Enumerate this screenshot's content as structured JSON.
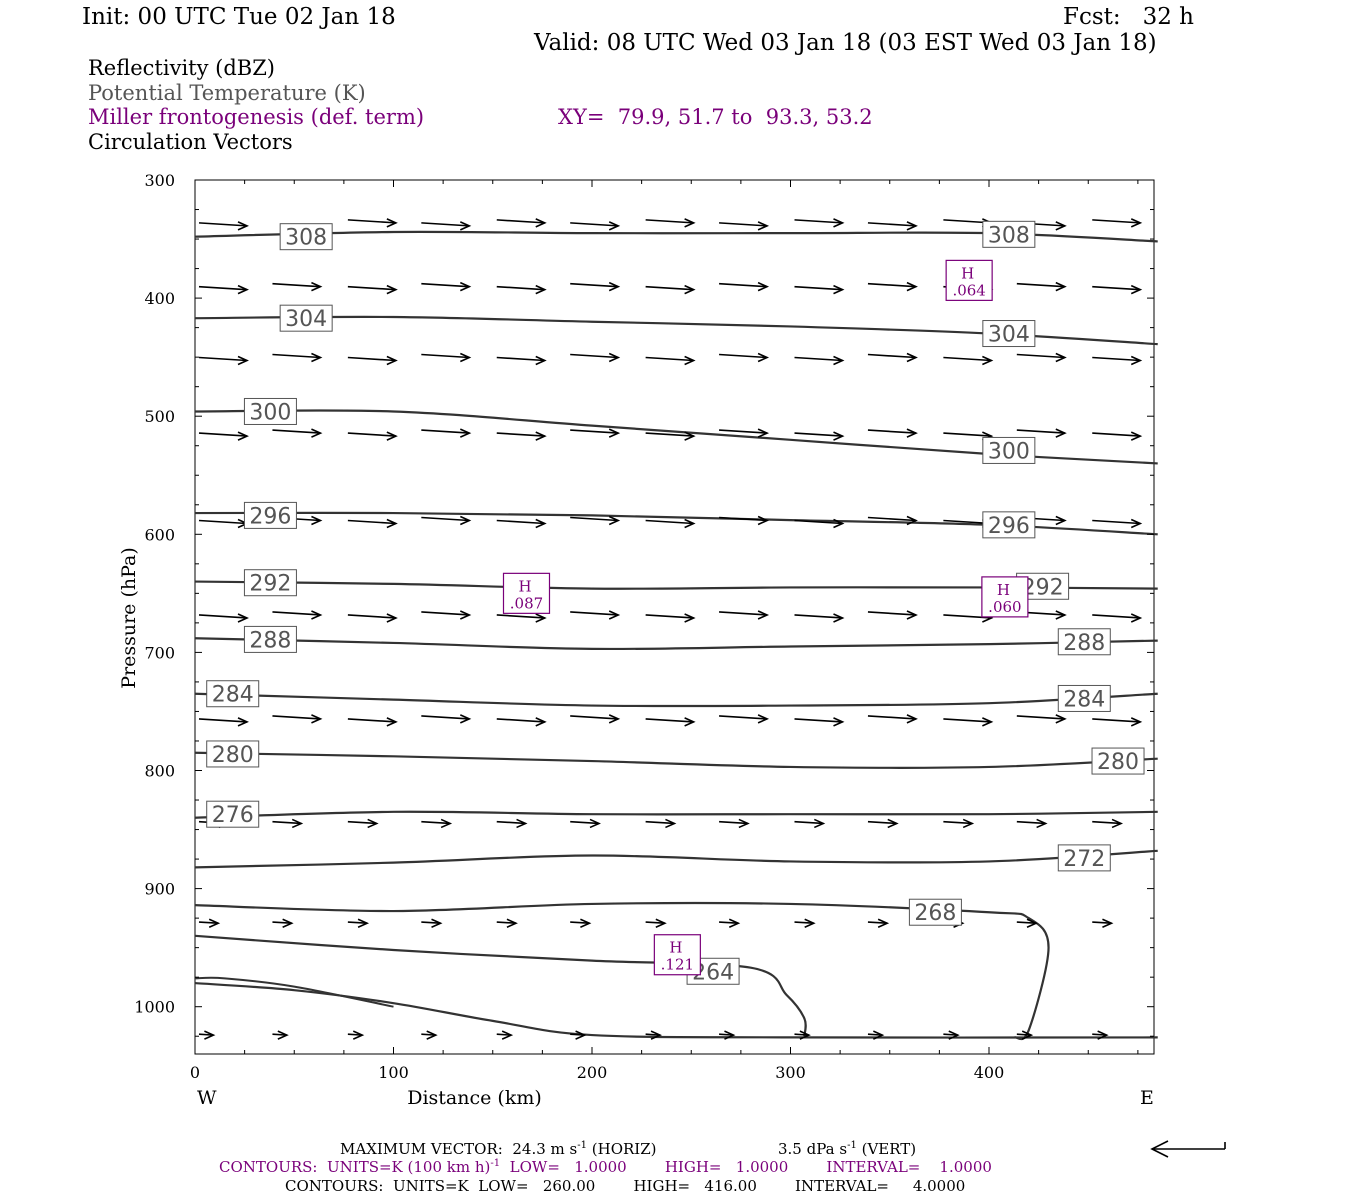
{
  "header": {
    "init": "Init: 00 UTC Tue 02 Jan 18",
    "fcst": "Fcst:   32 h",
    "valid": "Valid: 08 UTC Wed 03 Jan 18 (03 EST Wed 03 Jan 18)"
  },
  "fields": {
    "reflectivity": "Reflectivity (dBZ)",
    "theta": "Potential Temperature (K)",
    "frontogenesis": "Miller frontogenesis (def. term)",
    "xy": "XY=  79.9, 51.7 to  93.3, 53.2",
    "vectors": "Circulation Vectors"
  },
  "footer": {
    "maxvec_label": "MAXIMUM VECTOR:",
    "maxvec_h_value": "24.3 m s",
    "maxvec_h_exp": "-1",
    "maxvec_h_tag": "(HORIZ)",
    "maxvec_v_value": "3.5 dPa s",
    "maxvec_v_exp": "-1",
    "maxvec_v_tag": "(VERT)",
    "contours1_a": "CONTOURS:  UNITS=K (100 km h)",
    "contours1_exp": "-1",
    "contours1_b": "  LOW=   1.0000        HIGH=   1.0000        INTERVAL=    1.0000",
    "contours2": "CONTOURS:  UNITS=K  LOW=   260.00        HIGH=   416.00        INTERVAL=     4.0000"
  },
  "colors": {
    "frontogenesis": "#7a007a",
    "theta_label": "#555555",
    "contour": "#333333",
    "vector": "#000000"
  },
  "chart_data": {
    "type": "cross-section",
    "xlabel": "Distance (km)",
    "ylabel": "Pressure (hPa)",
    "xlim": [
      0,
      485
    ],
    "ylim": [
      1040,
      300
    ],
    "x_ticks": [
      0,
      100,
      200,
      300,
      400
    ],
    "y_ticks": [
      300,
      400,
      500,
      600,
      700,
      800,
      900,
      1000
    ],
    "x_end_labels": {
      "left": "W",
      "right": "E"
    },
    "theta_contours": [
      {
        "value": 308,
        "points": [
          [
            0,
            348
          ],
          [
            100,
            344
          ],
          [
            200,
            345
          ],
          [
            300,
            345
          ],
          [
            400,
            345
          ],
          [
            485,
            352
          ]
        ],
        "labels": [
          [
            56,
            348
          ],
          [
            410,
            346
          ]
        ]
      },
      {
        "value": 304,
        "points": [
          [
            0,
            417
          ],
          [
            100,
            416
          ],
          [
            200,
            420
          ],
          [
            300,
            424
          ],
          [
            400,
            430
          ],
          [
            485,
            439
          ]
        ],
        "labels": [
          [
            56,
            417
          ],
          [
            410,
            430
          ]
        ]
      },
      {
        "value": 300,
        "points": [
          [
            0,
            496
          ],
          [
            100,
            496
          ],
          [
            200,
            508
          ],
          [
            300,
            520
          ],
          [
            400,
            532
          ],
          [
            485,
            540
          ]
        ],
        "labels": [
          [
            38,
            496
          ],
          [
            410,
            529
          ]
        ]
      },
      {
        "value": 296,
        "points": [
          [
            0,
            582
          ],
          [
            100,
            582
          ],
          [
            200,
            584
          ],
          [
            300,
            588
          ],
          [
            400,
            592
          ],
          [
            485,
            600
          ]
        ],
        "labels": [
          [
            38,
            584
          ],
          [
            410,
            592
          ]
        ]
      },
      {
        "value": 292,
        "points": [
          [
            0,
            640
          ],
          [
            100,
            642
          ],
          [
            200,
            646
          ],
          [
            300,
            645
          ],
          [
            400,
            645
          ],
          [
            485,
            646
          ]
        ],
        "labels": [
          [
            38,
            641
          ],
          [
            427,
            644
          ]
        ]
      },
      {
        "value": 288,
        "points": [
          [
            0,
            688
          ],
          [
            100,
            692
          ],
          [
            200,
            697
          ],
          [
            300,
            695
          ],
          [
            400,
            693
          ],
          [
            485,
            690
          ]
        ],
        "labels": [
          [
            38,
            689
          ],
          [
            448,
            691
          ]
        ]
      },
      {
        "value": 284,
        "points": [
          [
            0,
            735
          ],
          [
            100,
            740
          ],
          [
            200,
            745
          ],
          [
            300,
            745
          ],
          [
            400,
            743
          ],
          [
            485,
            735
          ]
        ],
        "labels": [
          [
            19,
            735
          ],
          [
            448,
            739
          ]
        ]
      },
      {
        "value": 280,
        "points": [
          [
            0,
            785
          ],
          [
            100,
            788
          ],
          [
            200,
            792
          ],
          [
            300,
            797
          ],
          [
            400,
            797
          ],
          [
            485,
            790
          ]
        ],
        "labels": [
          [
            19,
            786
          ],
          [
            465,
            792
          ]
        ]
      },
      {
        "value": 276,
        "points": [
          [
            0,
            840
          ],
          [
            100,
            835
          ],
          [
            200,
            837
          ],
          [
            300,
            837
          ],
          [
            400,
            837
          ],
          [
            485,
            835
          ]
        ],
        "labels": [
          [
            19,
            837
          ]
        ]
      },
      {
        "value": 272,
        "points": [
          [
            0,
            882
          ],
          [
            100,
            878
          ],
          [
            200,
            872
          ],
          [
            300,
            877
          ],
          [
            400,
            877
          ],
          [
            485,
            868
          ]
        ],
        "labels": [
          [
            448,
            874
          ]
        ]
      },
      {
        "value": 268,
        "points": [
          [
            0,
            914
          ],
          [
            100,
            919
          ],
          [
            200,
            913
          ],
          [
            300,
            913
          ],
          [
            400,
            920
          ],
          [
            420,
            925
          ],
          [
            430,
            950
          ],
          [
            420,
            1020
          ],
          [
            413,
            1026
          ]
        ],
        "labels": [
          [
            373,
            920
          ]
        ]
      },
      {
        "value": 264,
        "points": [
          [
            0,
            940
          ],
          [
            100,
            952
          ],
          [
            200,
            961
          ],
          [
            280,
            967
          ],
          [
            298,
            990
          ],
          [
            307,
            1010
          ],
          [
            307,
            1025
          ]
        ],
        "labels": [
          [
            261,
            970
          ]
        ]
      },
      {
        "value": 260,
        "points": [
          [
            0,
            980
          ],
          [
            50,
            986
          ],
          [
            100,
            997
          ],
          [
            150,
            1012
          ],
          [
            200,
            1024
          ],
          [
            300,
            1026
          ],
          [
            485,
            1026
          ]
        ],
        "labels": []
      }
    ],
    "extra_contours": [
      {
        "points": [
          [
            0,
            976
          ],
          [
            15,
            976
          ],
          [
            50,
            983
          ],
          [
            100,
            1000
          ]
        ]
      }
    ],
    "theta_labels": [
      "308",
      "304",
      "300",
      "296",
      "292",
      "288",
      "284",
      "280",
      "276",
      "272",
      "268",
      "264"
    ],
    "frontogenesis_maxima": [
      {
        "label": "H",
        "value": ".064",
        "x": 390,
        "y": 385
      },
      {
        "label": "H",
        "value": ".087",
        "x": 167,
        "y": 650
      },
      {
        "label": "H",
        "value": ".060",
        "x": 408,
        "y": 653
      },
      {
        "label": "H",
        "value": ".121",
        "x": 243,
        "y": 956
      }
    ],
    "frontogenesis_text": [
      "H",
      "H",
      "H",
      "H",
      ".064",
      ".087",
      ".060",
      ".121"
    ],
    "vector_rows": [
      {
        "p": 338,
        "x": [
          0,
          75,
          112,
          150,
          187,
          225,
          262,
          300,
          337,
          375,
          412,
          450
        ],
        "u": [
          1,
          1,
          1,
          1,
          1,
          1,
          1,
          1,
          1,
          1,
          1,
          1
        ],
        "w": [
          0,
          0,
          0,
          0,
          0,
          0,
          0,
          0,
          0,
          0,
          0,
          0
        ]
      },
      {
        "p": 392,
        "x": [
          0,
          37,
          75,
          112,
          150,
          187,
          225,
          262,
          300,
          337,
          375,
          412,
          450
        ],
        "u": [
          1,
          1,
          1,
          1,
          1,
          1,
          1,
          1,
          1,
          1,
          1,
          1,
          1
        ],
        "w": [
          0,
          0,
          0,
          0,
          0,
          0,
          0,
          0,
          0,
          0,
          0,
          0,
          0
        ]
      },
      {
        "p": 452,
        "x": [
          0,
          37,
          75,
          112,
          150,
          187,
          225,
          262,
          300,
          337,
          375,
          412,
          450
        ],
        "u": [
          1,
          1,
          1,
          1,
          1,
          1,
          1,
          1,
          1,
          1,
          1,
          1,
          1
        ],
        "w": [
          0,
          0,
          0,
          0,
          0,
          0,
          0,
          0,
          0,
          0,
          0,
          0,
          0
        ]
      },
      {
        "p": 516,
        "x": [
          0,
          37,
          75,
          112,
          150,
          187,
          225,
          262,
          300,
          337,
          375,
          412,
          450
        ],
        "u": [
          1,
          1,
          1,
          1,
          1,
          1,
          1,
          1,
          1,
          1,
          1,
          1,
          1
        ],
        "w": [
          0,
          0,
          0,
          0,
          0,
          0,
          0,
          0,
          0,
          0,
          0,
          0,
          0
        ]
      },
      {
        "p": 590,
        "x": [
          0,
          37,
          75,
          112,
          150,
          187,
          225,
          262,
          300,
          337,
          375,
          412,
          450
        ],
        "u": [
          1,
          1,
          1,
          1,
          1,
          1,
          1,
          1,
          1,
          1,
          1,
          1,
          1
        ],
        "w": [
          0,
          0,
          0,
          0,
          0,
          0,
          0,
          0,
          0,
          0,
          0,
          0,
          0
        ]
      },
      {
        "p": 670,
        "x": [
          0,
          37,
          75,
          112,
          150,
          187,
          225,
          262,
          300,
          337,
          375,
          412,
          450
        ],
        "u": [
          1,
          1,
          1,
          1,
          1,
          1,
          1,
          1,
          1,
          1,
          1,
          1,
          1
        ],
        "w": [
          0,
          0,
          0,
          0,
          0,
          0,
          0,
          0,
          0,
          0,
          0,
          0,
          0
        ]
      },
      {
        "p": 758,
        "x": [
          0,
          37,
          75,
          112,
          150,
          187,
          225,
          262,
          300,
          337,
          375,
          412,
          450
        ],
        "u": [
          1,
          1,
          1,
          1,
          1,
          1,
          1,
          1,
          1,
          1,
          1,
          1,
          1
        ],
        "w": [
          0,
          0,
          0,
          0,
          0,
          0,
          0,
          0,
          0,
          0,
          0,
          0,
          0
        ]
      },
      {
        "p": 845,
        "x": [
          0,
          37,
          75,
          112,
          150,
          187,
          225,
          262,
          300,
          337,
          375,
          412,
          450
        ],
        "u": [
          0.6,
          0.6,
          0.6,
          0.6,
          0.6,
          0.6,
          0.6,
          0.6,
          0.6,
          0.6,
          0.6,
          0.6,
          0.6
        ],
        "w": [
          0,
          0,
          0,
          0,
          0,
          0,
          0,
          0,
          0,
          0,
          0,
          0,
          0
        ]
      },
      {
        "p": 930,
        "x": [
          0,
          37,
          75,
          112,
          150,
          187,
          225,
          262,
          300,
          337,
          375,
          412,
          450
        ],
        "u": [
          0.4,
          0.4,
          0.4,
          0.4,
          0.4,
          0.4,
          0.4,
          0.4,
          0.4,
          0.4,
          0.4,
          0.4,
          0.4
        ],
        "w": [
          0,
          0,
          0,
          0,
          0,
          0,
          0,
          0,
          0,
          0,
          0,
          0,
          0
        ]
      },
      {
        "p": 1025,
        "x": [
          0,
          37,
          75,
          112,
          150,
          187,
          225,
          262,
          300,
          337,
          375,
          412,
          450
        ],
        "u": [
          0.3,
          0.3,
          0.3,
          0.3,
          0.3,
          0.3,
          0.3,
          0.3,
          0.3,
          0.3,
          0.3,
          0.3,
          0.3
        ],
        "w": [
          0,
          0,
          0,
          0,
          0,
          0,
          0,
          0,
          0,
          0,
          0,
          0,
          0
        ]
      }
    ]
  }
}
